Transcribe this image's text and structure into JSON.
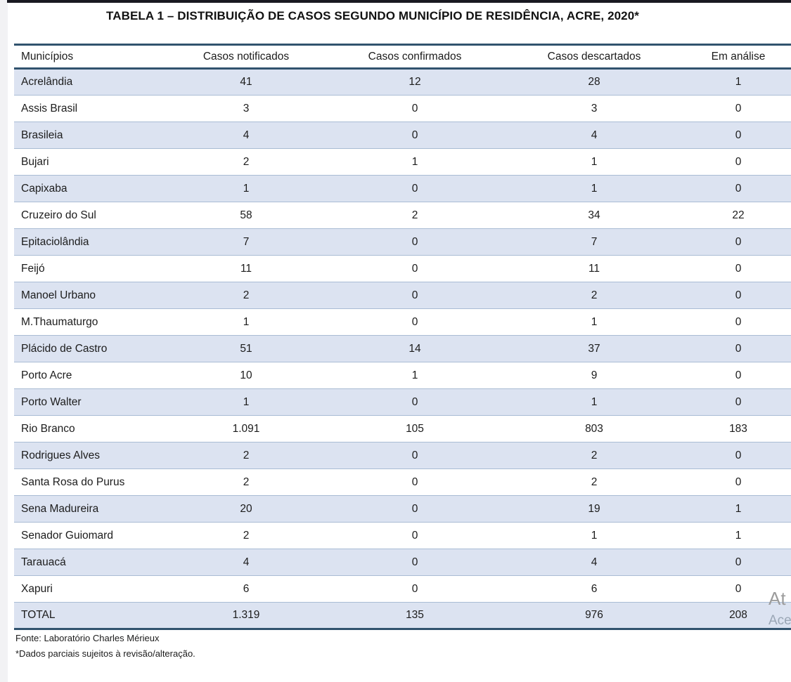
{
  "page": {
    "title": "TABELA 1 – DISTRIBUIÇÃO DE CASOS SEGUNDO MUNICÍPIO DE RESIDÊNCIA, ACRE, 2020*"
  },
  "table": {
    "columns": [
      "Municípios",
      "Casos notificados",
      "Casos confirmados",
      "Casos descartados",
      "Em análise"
    ],
    "rows": [
      [
        "Acrelândia",
        "41",
        "12",
        "28",
        "1"
      ],
      [
        "Assis Brasil",
        "3",
        "0",
        "3",
        "0"
      ],
      [
        "Brasileia",
        "4",
        "0",
        "4",
        "0"
      ],
      [
        "Bujari",
        "2",
        "1",
        "1",
        "0"
      ],
      [
        "Capixaba",
        "1",
        "0",
        "1",
        "0"
      ],
      [
        "Cruzeiro do Sul",
        "58",
        "2",
        "34",
        "22"
      ],
      [
        "Epitaciolândia",
        "7",
        "0",
        "7",
        "0"
      ],
      [
        "Feijó",
        "11",
        "0",
        "11",
        "0"
      ],
      [
        "Manoel Urbano",
        "2",
        "0",
        "2",
        "0"
      ],
      [
        "M.Thaumaturgo",
        "1",
        "0",
        "1",
        "0"
      ],
      [
        "Plácido de Castro",
        "51",
        "14",
        "37",
        "0"
      ],
      [
        "Porto Acre",
        "10",
        "1",
        "9",
        "0"
      ],
      [
        "Porto Walter",
        "1",
        "0",
        "1",
        "0"
      ],
      [
        "Rio Branco",
        "1.091",
        "105",
        "803",
        "183"
      ],
      [
        "Rodrigues Alves",
        "2",
        "0",
        "2",
        "0"
      ],
      [
        "Santa Rosa do Purus",
        "2",
        "0",
        "2",
        "0"
      ],
      [
        "Sena Madureira",
        "20",
        "0",
        "19",
        "1"
      ],
      [
        "Senador Guiomard",
        "2",
        "0",
        "1",
        "1"
      ],
      [
        "Tarauacá",
        "4",
        "0",
        "4",
        "0"
      ],
      [
        "Xapuri",
        "6",
        "0",
        "6",
        "0"
      ]
    ],
    "total_row": [
      "TOTAL",
      "1.319",
      "135",
      "976",
      "208"
    ]
  },
  "footnotes": {
    "source": "Fonte: Laboratório Charles Mérieux",
    "note": "*Dados parciais sujeitos à revisão/alteração."
  },
  "watermark": {
    "line1": "At",
    "line2": "Ace"
  },
  "colors": {
    "row_shading": "#dce3f1",
    "dark_border": "#31536e",
    "row_separator": "#a9bcd4",
    "text": "#1c1c1c",
    "watermark_gray": "#9c9c9c"
  }
}
